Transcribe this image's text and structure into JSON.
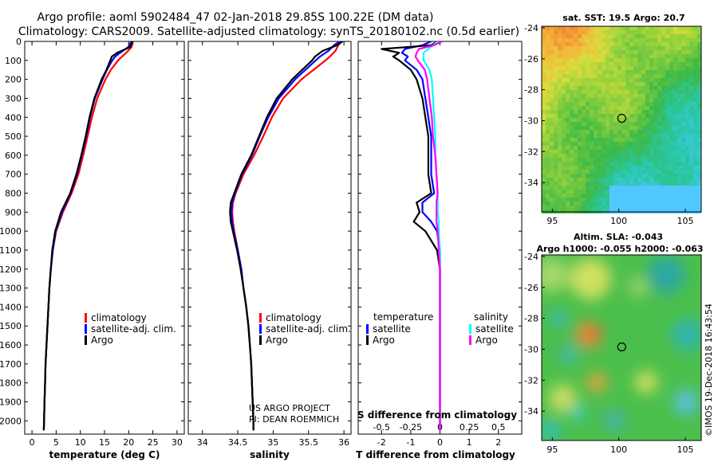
{
  "title_line1": "Argo profile: aoml 5902484_47 02-Jan-2018 29.85S 100.22E (DM data)",
  "title_line2": "Climatology: CARS2009. Satellite-adjusted climatology: synTS_20180102.nc (0.5d earlier)",
  "depth_ticks": [
    "0",
    "100",
    "200",
    "300",
    "400",
    "500",
    "600",
    "700",
    "800",
    "900",
    "1000",
    "1100",
    "1200",
    "1300",
    "1400",
    "1500",
    "1600",
    "1700",
    "1800",
    "1900",
    "2000"
  ],
  "colors": {
    "climatology": "#ff0000",
    "satellite": "#0000ff",
    "argo": "#000000",
    "sat_salinity": "#00ffff",
    "argo_salinity": "#ff00ff"
  },
  "chart_data": [
    {
      "type": "line",
      "id": "temperature",
      "xlabel": "temperature (deg C)",
      "xlim": [
        -1.5,
        31.5
      ],
      "ylim": [
        2070,
        0
      ],
      "xticks": [
        "0",
        "5",
        "10",
        "15",
        "20",
        "25",
        "30"
      ],
      "legend": [
        "climatology",
        "satellite-adj. clim.",
        "Argo"
      ],
      "depth": [
        0,
        30,
        60,
        80,
        100,
        150,
        200,
        300,
        400,
        500,
        600,
        700,
        800,
        900,
        1000,
        1100,
        1200,
        1300,
        1400,
        1500,
        1600,
        1700,
        1800,
        1900,
        2000,
        2050
      ],
      "series": [
        {
          "name": "climatology",
          "values": [
            20.9,
            20.6,
            19.5,
            18.6,
            17.8,
            16.3,
            15.2,
            13.5,
            12.4,
            11.5,
            10.6,
            9.6,
            8.2,
            6.4,
            5.0,
            4.3,
            3.9,
            3.6,
            3.4,
            3.2,
            3.0,
            2.8,
            2.7,
            2.6,
            2.5,
            2.45
          ]
        },
        {
          "name": "satellite-adj. clim.",
          "values": [
            20.6,
            19.9,
            18.2,
            17.2,
            16.6,
            15.5,
            14.6,
            13.0,
            12.0,
            11.2,
            10.3,
            9.3,
            8.0,
            6.2,
            4.9,
            4.3,
            3.9,
            3.6,
            3.4,
            3.2,
            3.0,
            2.8,
            2.7,
            2.6,
            2.5,
            2.45
          ]
        },
        {
          "name": "Argo",
          "values": [
            20.8,
            20.3,
            17.6,
            16.5,
            16.2,
            15.4,
            14.4,
            12.9,
            11.9,
            11.1,
            10.2,
            9.2,
            7.9,
            6.0,
            4.8,
            4.2,
            3.9,
            3.6,
            3.4,
            3.2,
            3.0,
            2.8,
            2.7,
            2.6,
            2.5,
            2.45
          ]
        }
      ]
    },
    {
      "type": "line",
      "id": "salinity",
      "xlabel": "salinity",
      "xlim": [
        33.8,
        36.1
      ],
      "ylim": [
        2070,
        0
      ],
      "xticks": [
        "34",
        "34.5",
        "35",
        "35.5",
        "36"
      ],
      "legend": [
        "climatology",
        "satellite-adj. clim.",
        "Argo"
      ],
      "annotation_line1": "US ARGO PROJECT",
      "annotation_line2": "PI: DEAN ROEMMICH",
      "depth": [
        0,
        20,
        50,
        80,
        100,
        200,
        300,
        400,
        500,
        600,
        700,
        800,
        850,
        900,
        950,
        1000,
        1100,
        1200,
        1300,
        1400,
        1500,
        1600,
        1700,
        1800,
        1900,
        2000,
        2050
      ],
      "series": [
        {
          "name": "climatology",
          "values": [
            35.96,
            35.92,
            35.88,
            35.8,
            35.74,
            35.4,
            35.14,
            34.98,
            34.86,
            34.73,
            34.58,
            34.47,
            34.43,
            34.42,
            34.43,
            34.45,
            34.5,
            34.55,
            34.58,
            34.62,
            34.65,
            34.67,
            34.69,
            34.7,
            34.71,
            34.72,
            34.72
          ]
        },
        {
          "name": "satellite-adj. clim.",
          "values": [
            35.94,
            35.86,
            35.78,
            35.66,
            35.6,
            35.31,
            35.08,
            34.93,
            34.81,
            34.7,
            34.56,
            34.46,
            34.42,
            34.41,
            34.42,
            34.44,
            34.5,
            34.55,
            34.58,
            34.62,
            34.65,
            34.67,
            34.69,
            34.7,
            34.71,
            34.72,
            34.72
          ]
        },
        {
          "name": "Argo",
          "values": [
            35.98,
            35.9,
            35.7,
            35.59,
            35.55,
            35.27,
            35.05,
            34.91,
            34.8,
            34.69,
            34.55,
            34.45,
            34.4,
            34.39,
            34.4,
            34.43,
            34.49,
            34.54,
            34.58,
            34.62,
            34.65,
            34.67,
            34.69,
            34.7,
            34.71,
            34.72,
            34.72
          ]
        }
      ]
    },
    {
      "type": "line",
      "id": "difference",
      "xlabel": "T difference from climatology",
      "xlabel_top": "S difference from climatology",
      "xlim": [
        -2.8,
        2.8
      ],
      "ylim": [
        2070,
        0
      ],
      "xticks": [
        "-2",
        "-1",
        "0",
        "1",
        "2"
      ],
      "sticks": [
        "-0.5",
        "-0.25",
        "0",
        "0.25",
        "0.5"
      ],
      "legend_temperature_title": "temperature",
      "legend_salinity_title": "salinity",
      "legend_temperature": [
        "satellite",
        "Argo"
      ],
      "legend_salinity": [
        "satellite",
        "Argo"
      ],
      "depth": [
        0,
        20,
        40,
        60,
        80,
        100,
        150,
        200,
        300,
        400,
        500,
        600,
        700,
        800,
        850,
        900,
        950,
        1000,
        1100,
        1200,
        1300,
        1500,
        1700,
        1900,
        2000,
        2050
      ],
      "series": [
        {
          "name": "T satellite",
          "values": [
            -0.3,
            -0.6,
            -1.2,
            -1.3,
            -1.1,
            -1.2,
            -0.8,
            -0.6,
            -0.5,
            -0.4,
            -0.3,
            -0.3,
            -0.3,
            -0.2,
            -0.6,
            -0.6,
            -0.3,
            -0.1,
            0.0,
            0.0,
            0.0,
            0.0,
            0.0,
            0.0,
            0.0,
            0.0
          ]
        },
        {
          "name": "T Argo",
          "values": [
            -0.1,
            -0.3,
            -2.0,
            -1.4,
            -1.6,
            -1.4,
            -1.0,
            -0.8,
            -0.6,
            -0.5,
            -0.4,
            -0.4,
            -0.4,
            -0.3,
            -0.8,
            -0.7,
            -0.9,
            -0.5,
            -0.1,
            0.0,
            0.0,
            0.0,
            0.0,
            0.0,
            0.0,
            0.0
          ]
        },
        {
          "name": "S satellite",
          "values": [
            -0.02,
            -0.06,
            -0.1,
            -0.14,
            -0.14,
            -0.14,
            -0.09,
            -0.07,
            -0.06,
            -0.05,
            -0.04,
            -0.04,
            -0.03,
            -0.02,
            -0.02,
            -0.02,
            -0.01,
            -0.01,
            0.0,
            0.0,
            0.0,
            0.0,
            0.0,
            0.0,
            0.0,
            0.0
          ]
        },
        {
          "name": "S Argo",
          "values": [
            0.02,
            -0.05,
            -0.18,
            -0.2,
            -0.21,
            -0.19,
            -0.13,
            -0.11,
            -0.09,
            -0.07,
            -0.06,
            -0.04,
            -0.03,
            -0.02,
            -0.03,
            -0.03,
            -0.03,
            -0.02,
            -0.01,
            0.0,
            0.0,
            0.0,
            0.0,
            0.0,
            0.0,
            0.0
          ]
        }
      ]
    },
    {
      "type": "heatmap",
      "id": "sst_map",
      "title": "sat. SST: 19.5 Argo: 20.7",
      "xticks": [
        "95",
        "100",
        "105"
      ],
      "yticks": [
        "-24",
        "-26",
        "-28",
        "-30",
        "-32",
        "-34"
      ],
      "xlim": [
        94.2,
        106.2
      ],
      "ylim": [
        -35.9,
        -23.9
      ],
      "marker": {
        "lon": 100.22,
        "lat": -29.85
      }
    },
    {
      "type": "heatmap",
      "id": "sla_map",
      "title": "Altim. SLA: -0.043",
      "subtitle": "Argo h1000: -0.055 h2000: -0.063",
      "xticks": [
        "95",
        "100",
        "105"
      ],
      "yticks": [
        "-24",
        "-26",
        "-28",
        "-30",
        "-32",
        "-34"
      ],
      "xlim": [
        94.2,
        106.2
      ],
      "ylim": [
        -35.9,
        -23.9
      ],
      "marker": {
        "lon": 100.22,
        "lat": -29.85
      }
    }
  ],
  "copyright": "©IMOS 19-Dec-2018 16:43:54"
}
